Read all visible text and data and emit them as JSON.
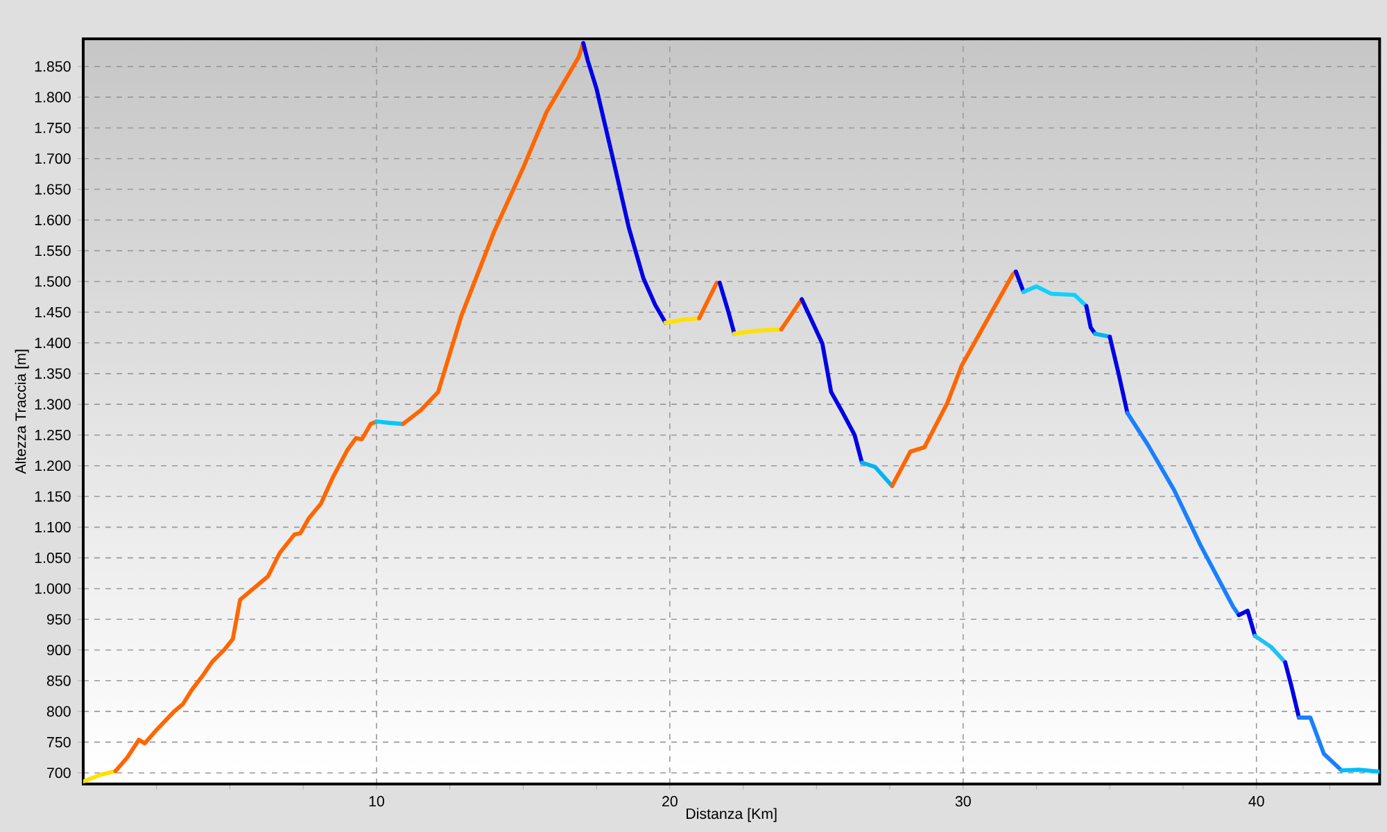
{
  "chart_data": {
    "type": "line",
    "xlabel": "Distanza [Km]",
    "ylabel": "Altezza Traccia [m]",
    "xlim": [
      0,
      44.2
    ],
    "ylim": [
      682,
      1895
    ],
    "xticks": [
      {
        "value": 2.5,
        "label": null
      },
      {
        "value": 5,
        "label": null
      },
      {
        "value": 7.5,
        "label": null
      },
      10,
      {
        "value": 12.5,
        "label": null
      },
      {
        "value": 15,
        "label": null
      },
      {
        "value": 17.5,
        "label": null
      },
      20,
      {
        "value": 22.5,
        "label": null
      },
      {
        "value": 25,
        "label": null
      },
      {
        "value": 27.5,
        "label": null
      },
      30,
      {
        "value": 32.5,
        "label": null
      },
      {
        "value": 35,
        "label": null
      },
      {
        "value": 37.5,
        "label": null
      },
      40,
      {
        "value": 42.5,
        "label": null
      }
    ],
    "yticks": [
      700,
      750,
      800,
      850,
      900,
      950,
      {
        "value": 1000,
        "label": "1.000"
      },
      {
        "value": 1050,
        "label": "1.050"
      },
      {
        "value": 1100,
        "label": "1.100"
      },
      {
        "value": 1150,
        "label": "1.150"
      },
      {
        "value": 1200,
        "label": "1.200"
      },
      {
        "value": 1250,
        "label": "1.250"
      },
      {
        "value": 1300,
        "label": "1.300"
      },
      {
        "value": 1350,
        "label": "1.350"
      },
      {
        "value": 1400,
        "label": "1.400"
      },
      {
        "value": 1450,
        "label": "1.450"
      },
      {
        "value": 1500,
        "label": "1.500"
      },
      {
        "value": 1550,
        "label": "1.550"
      },
      {
        "value": 1600,
        "label": "1.600"
      },
      {
        "value": 1650,
        "label": "1.650"
      },
      {
        "value": 1700,
        "label": "1.700"
      },
      {
        "value": 1750,
        "label": "1.750"
      },
      {
        "value": 1800,
        "label": "1.800"
      },
      {
        "value": 1850,
        "label": "1.850"
      }
    ],
    "grid": true,
    "marker": "none",
    "line_style": "solid",
    "series": [
      {
        "color": "#ffe100",
        "x": [
          0,
          0.6,
          1.1
        ],
        "values": [
          686,
          697,
          703
        ]
      },
      {
        "color": "#ff6600",
        "x": [
          1.1,
          1.5,
          1.9,
          2.1,
          2.5,
          3.1,
          3.4,
          3.7,
          4.1,
          4.4,
          4.8,
          5.1,
          5.35,
          5.8,
          6.1,
          6.3,
          6.7,
          7.2,
          7.4,
          7.7,
          8.1,
          8.5,
          9.0,
          9.3,
          9.5,
          9.8,
          10.0
        ],
        "values": [
          703,
          725,
          754,
          748,
          770,
          800,
          812,
          835,
          860,
          881,
          900,
          918,
          982,
          1000,
          1012,
          1020,
          1058,
          1088,
          1090,
          1115,
          1138,
          1180,
          1225,
          1245,
          1243,
          1268,
          1272
        ]
      },
      {
        "color": "#00c8ff",
        "x": [
          10.0,
          10.4,
          10.9
        ],
        "values": [
          1272,
          1270,
          1268
        ]
      },
      {
        "color": "#ff6600",
        "x": [
          10.9,
          11.5,
          12.1,
          12.9,
          14.0,
          15.0,
          15.8,
          16.9,
          17.05
        ],
        "values": [
          1268,
          1290,
          1320,
          1445,
          1580,
          1685,
          1776,
          1866,
          1888
        ]
      },
      {
        "color": "#0000e6",
        "x": [
          17.05,
          17.2,
          17.5,
          18.1,
          18.6,
          19.1,
          19.5,
          19.85
        ],
        "values": [
          1888,
          1860,
          1814,
          1692,
          1588,
          1505,
          1462,
          1433
        ]
      },
      {
        "color": "#ffe100",
        "x": [
          19.85,
          20.5,
          21.0
        ],
        "values": [
          1433,
          1438,
          1440
        ]
      },
      {
        "color": "#ff6600",
        "x": [
          21.0,
          21.6
        ],
        "values": [
          1440,
          1498
        ]
      },
      {
        "color": "#0000e6",
        "x": [
          21.7,
          22.0,
          22.2
        ],
        "values": [
          1498,
          1450,
          1415
        ]
      },
      {
        "color": "#ffe100",
        "x": [
          22.2,
          23.0,
          23.8
        ],
        "values": [
          1415,
          1420,
          1422
        ]
      },
      {
        "color": "#ff6600",
        "x": [
          23.8,
          24.5
        ],
        "values": [
          1422,
          1471
        ]
      },
      {
        "color": "#0000e6",
        "x": [
          24.5,
          24.9,
          25.2,
          25.5,
          25.9,
          26.3,
          26.55
        ],
        "values": [
          1471,
          1430,
          1399,
          1320,
          1286,
          1250,
          1205
        ]
      },
      {
        "color": "#00b4f0",
        "x": [
          26.55,
          27.0,
          27.58
        ],
        "values": [
          1205,
          1198,
          1167
        ]
      },
      {
        "color": "#ff6600",
        "x": [
          27.58,
          28.2,
          28.68,
          29.46,
          29.95,
          30.9,
          31.7,
          31.8
        ],
        "values": [
          1167,
          1223,
          1230,
          1302,
          1363,
          1444,
          1512,
          1516
        ]
      },
      {
        "color": "#0000e6",
        "x": [
          31.8,
          32.06
        ],
        "values": [
          1516,
          1483
        ]
      },
      {
        "color": "#10d0ff",
        "x": [
          32.06,
          32.5,
          33.0,
          33.8,
          34.2
        ],
        "values": [
          1483,
          1492,
          1480,
          1478,
          1460
        ]
      },
      {
        "color": "#0000e6",
        "x": [
          34.2,
          34.35,
          34.5
        ],
        "values": [
          1460,
          1425,
          1415
        ]
      },
      {
        "color": "#00b4f0",
        "x": [
          34.5,
          35.0
        ],
        "values": [
          1415,
          1410
        ]
      },
      {
        "color": "#0000e6",
        "x": [
          35.0,
          35.3,
          35.6
        ],
        "values": [
          1410,
          1350,
          1286
        ]
      },
      {
        "color": "#1a7fff",
        "x": [
          35.6,
          36.3,
          37.2,
          38.1,
          39.2,
          39.4
        ],
        "values": [
          1286,
          1234,
          1160,
          1070,
          971,
          957
        ]
      },
      {
        "color": "#0000e6",
        "x": [
          39.4,
          39.7,
          39.95
        ],
        "values": [
          957,
          964,
          923
        ]
      },
      {
        "color": "#20c0f8",
        "x": [
          39.95,
          40.5,
          40.98
        ],
        "values": [
          923,
          905,
          880
        ]
      },
      {
        "color": "#0000e6",
        "x": [
          40.98,
          41.2,
          41.45
        ],
        "values": [
          880,
          840,
          790
        ]
      },
      {
        "color": "#1a7fff",
        "x": [
          41.45,
          41.84,
          42.3,
          42.9
        ],
        "values": [
          790,
          790,
          731,
          704
        ]
      },
      {
        "color": "#00bcf8",
        "x": [
          42.9,
          43.5,
          44.2
        ],
        "values": [
          704,
          705,
          702
        ]
      }
    ]
  }
}
